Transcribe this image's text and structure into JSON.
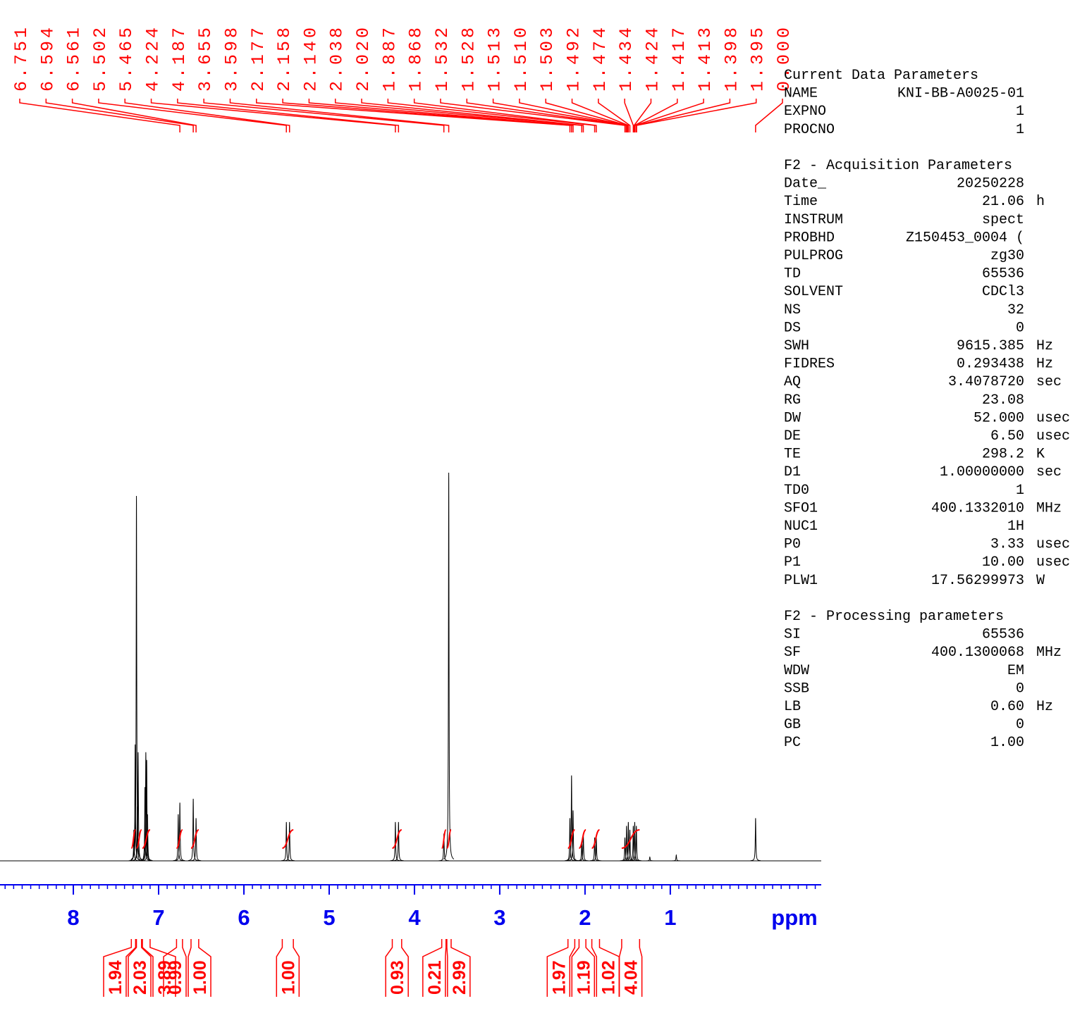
{
  "chart_data": {
    "type": "nmr-spectrum",
    "xlabel": "ppm",
    "xlim": [
      8.86,
      -0.77
    ],
    "xticks": [
      8,
      7,
      6,
      5,
      4,
      3,
      2,
      1
    ],
    "x": [
      7.29,
      7.275,
      7.26,
      7.25,
      7.24,
      7.16,
      7.15,
      7.14,
      7.13,
      6.77,
      6.751,
      6.594,
      6.561,
      5.502,
      5.465,
      4.224,
      4.187,
      3.655,
      3.598,
      2.177,
      2.158,
      2.14,
      2.038,
      2.02,
      1.887,
      1.868,
      1.532,
      1.513,
      1.492,
      1.474,
      1.434,
      1.417,
      1.398,
      1.24,
      0.93,
      0
    ],
    "values": [
      8,
      30,
      94,
      14,
      28,
      19,
      28,
      26,
      12,
      12,
      15,
      16,
      11,
      10,
      10,
      10,
      10,
      7,
      100,
      11,
      22,
      13,
      5,
      7,
      6,
      6,
      6,
      9,
      10,
      8,
      9,
      10,
      9,
      1,
      1.5,
      11
    ],
    "peak_picks": {
      "values": [
        6.751,
        6.594,
        6.561,
        5.502,
        5.465,
        4.224,
        4.187,
        3.655,
        3.598,
        2.177,
        2.158,
        2.14,
        2.038,
        2.02,
        1.887,
        1.868,
        1.532,
        1.528,
        1.513,
        1.51,
        1.503,
        1.492,
        1.474,
        1.434,
        1.424,
        1.417,
        1.413,
        1.398,
        1.395,
        0
      ],
      "value_labels": [
        "6.751",
        "6.594",
        "6.561",
        "5.502",
        "5.465",
        "4.224",
        "4.187",
        "3.655",
        "3.598",
        "2.177",
        "2.158",
        "2.140",
        "2.038",
        "2.020",
        "1.887",
        "1.868",
        "1.532",
        "1.528",
        "1.513",
        "1.510",
        "1.503",
        "1.492",
        "1.474",
        "1.434",
        "1.424",
        "1.417",
        "1.413",
        "1.398",
        "1.395",
        "0.000"
      ]
    },
    "integrals": {
      "values": [
        1.94,
        2.03,
        3.89,
        0.99,
        1.0,
        1.0,
        0.93,
        0.21,
        2.99,
        1.97,
        1.19,
        1.02,
        4.04
      ],
      "value_labels": [
        "1.94",
        "2.03",
        "3.89",
        "0.99",
        "1.00",
        "1.00",
        "0.93",
        "0.21",
        "2.99",
        "1.97",
        "1.19",
        "1.02",
        "4.04"
      ],
      "ranges": [
        [
          7.32,
          7.27
        ],
        [
          7.26,
          7.2
        ],
        [
          7.19,
          7.1
        ],
        [
          6.79,
          6.72
        ],
        [
          6.62,
          6.53
        ],
        [
          5.55,
          5.42
        ],
        [
          4.26,
          4.15
        ],
        [
          3.68,
          3.63
        ],
        [
          3.62,
          3.57
        ],
        [
          2.2,
          2.12
        ],
        [
          2.07,
          1.99
        ],
        [
          1.92,
          1.83
        ],
        [
          1.57,
          1.36
        ]
      ]
    }
  },
  "parameters": [
    {
      "title": "Current Data Parameters",
      "rows": [
        [
          "NAME",
          "KNI-BB-A0025-01"
        ],
        [
          "EXPNO",
          "1"
        ],
        [
          "PROCNO",
          "1"
        ]
      ]
    },
    {
      "title": "F2 - Acquisition Parameters",
      "rows": [
        [
          "Date_",
          "20250228"
        ],
        [
          "Time",
          "21.06",
          "h"
        ],
        [
          "INSTRUM",
          "spect"
        ],
        [
          "PROBHD",
          "Z150453_0004 ("
        ],
        [
          "PULPROG",
          "zg30"
        ],
        [
          "TD",
          "65536"
        ],
        [
          "SOLVENT",
          "CDCl3"
        ],
        [
          "NS",
          "32"
        ],
        [
          "DS",
          "0"
        ],
        [
          "SWH",
          "9615.385",
          "Hz"
        ],
        [
          "FIDRES",
          "0.293438",
          "Hz"
        ],
        [
          "AQ",
          "3.4078720",
          "sec"
        ],
        [
          "RG",
          "23.08"
        ],
        [
          "DW",
          "52.000",
          "usec"
        ],
        [
          "DE",
          "6.50",
          "usec"
        ],
        [
          "TE",
          "298.2",
          "K"
        ],
        [
          "D1",
          "1.00000000",
          "sec"
        ],
        [
          "TD0",
          "1"
        ],
        [
          "SFO1",
          "400.1332010",
          "MHz"
        ],
        [
          "NUC1",
          "1H"
        ],
        [
          "P0",
          "3.33",
          "usec"
        ],
        [
          "P1",
          "10.00",
          "usec"
        ],
        [
          "PLW1",
          "17.56299973",
          "W"
        ]
      ]
    },
    {
      "title": "F2 - Processing parameters",
      "rows": [
        [
          "SI",
          "65536"
        ],
        [
          "SF",
          "400.1300068",
          "MHz"
        ],
        [
          "WDW",
          "EM"
        ],
        [
          "SSB",
          "0"
        ],
        [
          "LB",
          "0.60",
          "Hz"
        ],
        [
          "GB",
          "0"
        ],
        [
          "PC",
          "1.00"
        ]
      ]
    }
  ]
}
